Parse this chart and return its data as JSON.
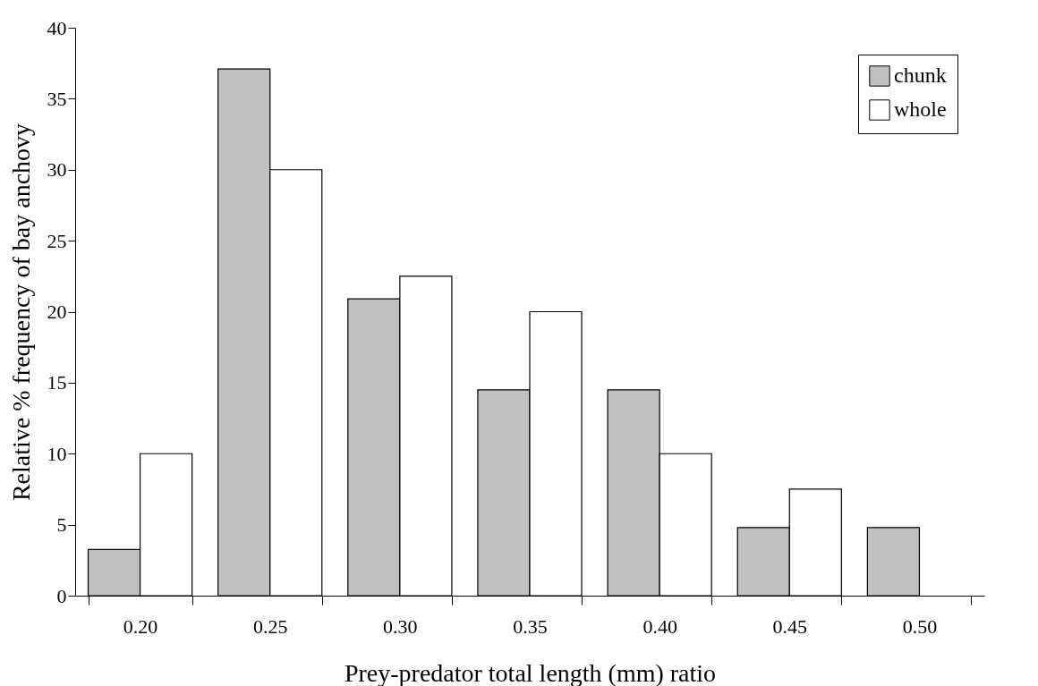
{
  "chart_data": {
    "type": "bar",
    "xlabel": "Prey-predator total length (mm) ratio",
    "ylabel": "Relative % frequency of bay anchovy",
    "categories": [
      "0.20",
      "0.25",
      "0.30",
      "0.35",
      "0.40",
      "0.45",
      "0.50"
    ],
    "series": [
      {
        "name": "chunk",
        "color": "#c0c0c0",
        "values": [
          3.25,
          37.1,
          20.9,
          14.5,
          14.5,
          4.8,
          4.8
        ]
      },
      {
        "name": "whole",
        "color": "#ffffff",
        "values": [
          10,
          30,
          22.5,
          20,
          10,
          7.5,
          null
        ]
      }
    ],
    "ylim": [
      0,
      40
    ],
    "yticks": [
      0,
      5,
      10,
      15,
      20,
      25,
      30,
      35,
      40
    ],
    "grid": false,
    "legend": "top right"
  }
}
